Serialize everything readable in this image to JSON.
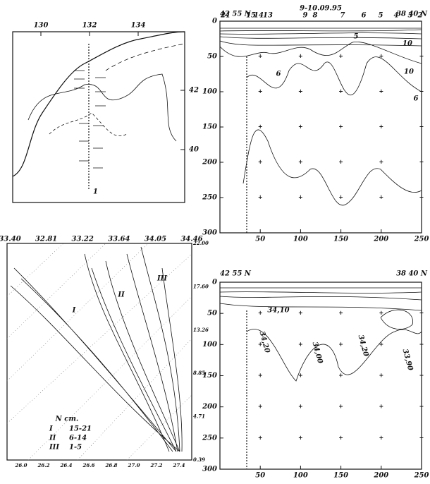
{
  "map": {
    "lon_ticks": [
      130,
      132,
      134
    ],
    "lat_ticks": [
      42,
      40
    ],
    "station_label": "1"
  },
  "section_top": {
    "start_label": "42 55 N",
    "end_label": "38 40 N",
    "date": "9-10.09.95",
    "stations": [
      "21",
      "15",
      "14",
      "13",
      "9",
      "8",
      "7",
      "6",
      "5",
      "4",
      "3",
      "2"
    ],
    "depth_ticks": [
      0,
      50,
      100,
      150,
      200,
      250,
      300
    ],
    "distance_ticks": [
      50,
      100,
      150,
      200,
      250
    ],
    "contour_labels": [
      "10",
      "5",
      "6",
      "10",
      "6"
    ]
  },
  "ts_diagram": {
    "top_ticks": [
      "33.40",
      "32.81",
      "33.22",
      "33.64",
      "34.05",
      "34.46"
    ],
    "right_ticks": [
      "22.00",
      "17.60",
      "13.26",
      "8.85",
      "4.71",
      "0.39"
    ],
    "bottom_ticks": [
      "26.0",
      "26.2",
      "26.4",
      "26.6",
      "26.8",
      "27.0",
      "27.2",
      "27.4"
    ],
    "group_labels": [
      "I",
      "II",
      "III"
    ],
    "legend": {
      "title": "N ст.",
      "rows": [
        [
          "I",
          "15-21"
        ],
        [
          "II",
          "6-14"
        ],
        [
          "III",
          "1-5"
        ]
      ]
    }
  },
  "section_bottom": {
    "start_label": "42 55 N",
    "end_label": "38 40 N",
    "depth_ticks": [
      0,
      50,
      100,
      150,
      200,
      250,
      300
    ],
    "distance_ticks": [
      50,
      100,
      150,
      200,
      250
    ],
    "contour_labels": [
      "34,10",
      "34,20",
      "34,00",
      "34,20",
      "33,90"
    ]
  }
}
